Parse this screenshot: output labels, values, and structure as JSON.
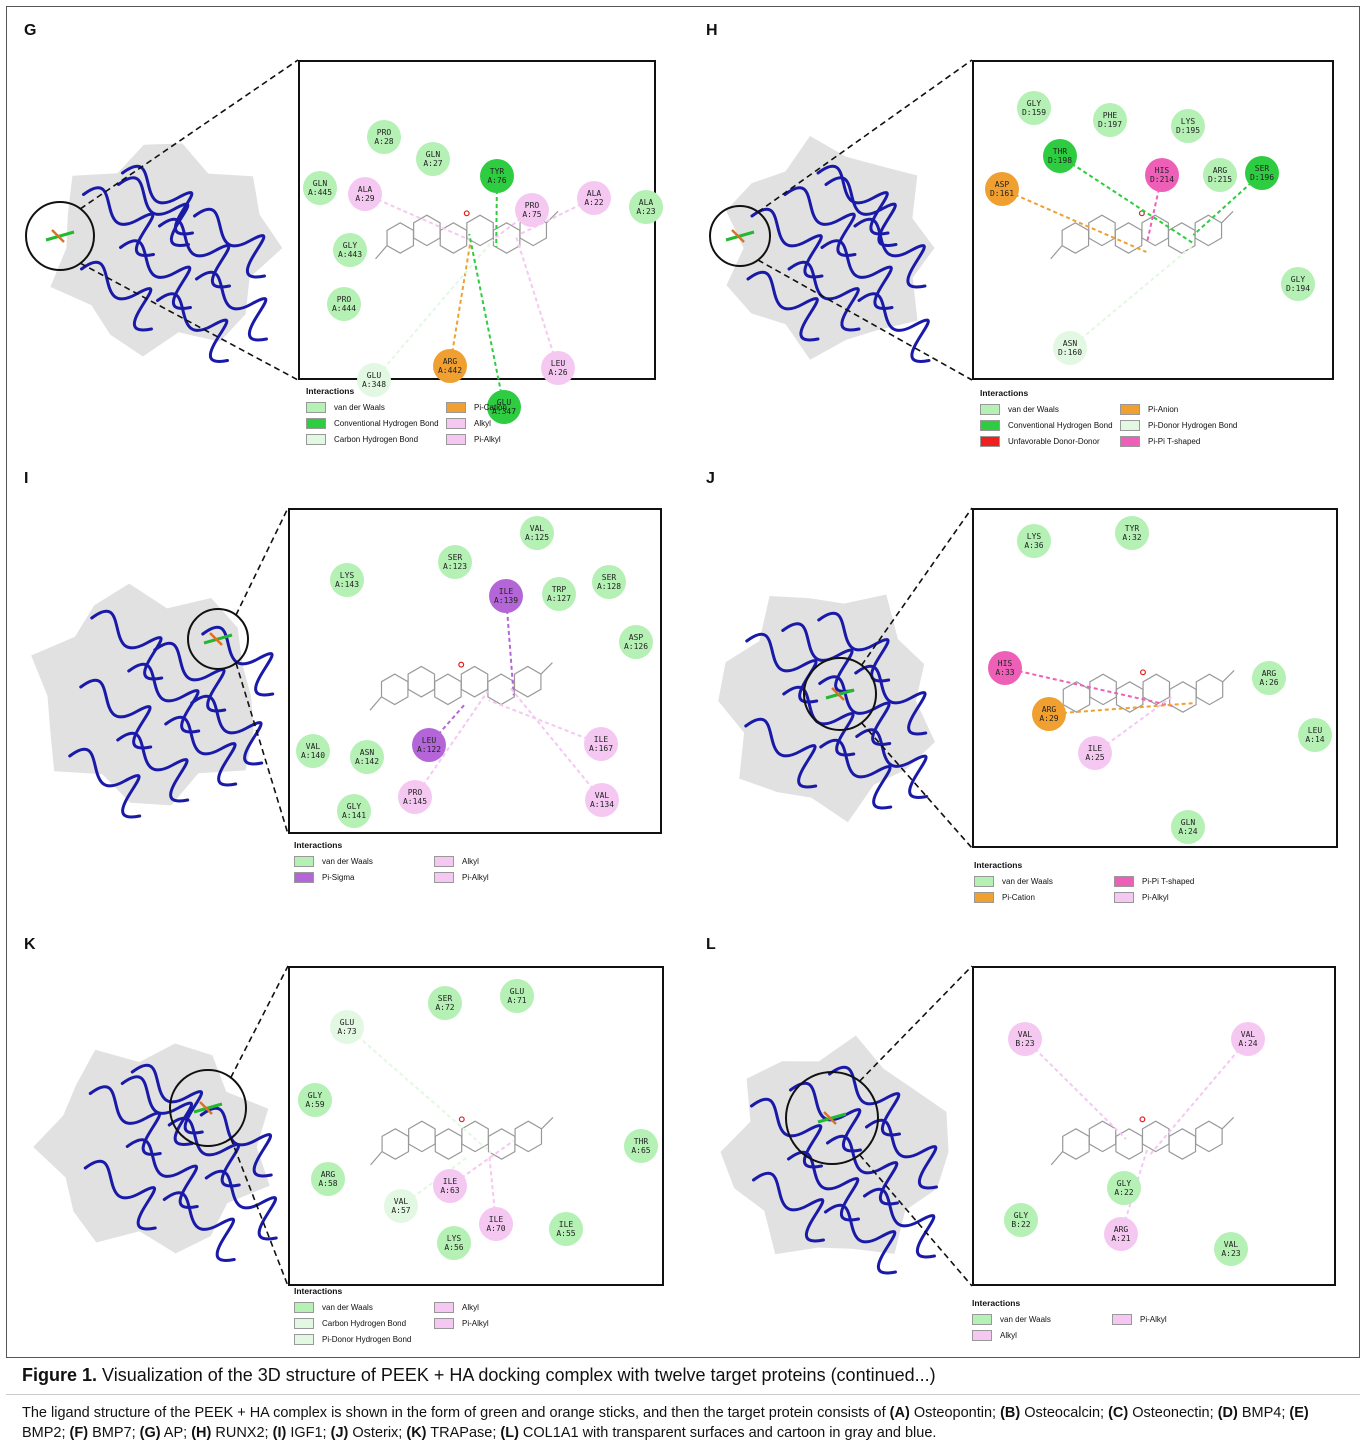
{
  "panels": [
    {
      "id": "G",
      "legend": [
        [
          "vdw",
          "van der Waals"
        ],
        [
          "pic",
          "Pi-Cation"
        ],
        [
          "hb",
          "Conventional Hydrogen Bond"
        ],
        [
          "alk",
          "Alkyl"
        ],
        [
          "chb",
          "Carbon Hydrogen Bond"
        ],
        [
          "alk",
          "Pi-Alkyl"
        ]
      ],
      "residues": [
        [
          "vdw",
          "PRO",
          "A:28"
        ],
        [
          "vdw",
          "GLN",
          "A:27"
        ],
        [
          "hb",
          "TYR",
          "A:76"
        ],
        [
          "vdw",
          "GLN",
          "A:445"
        ],
        [
          "alk",
          "ALA",
          "A:29"
        ],
        [
          "alk",
          "PRO",
          "A:75"
        ],
        [
          "alk",
          "ALA",
          "A:22"
        ],
        [
          "vdw",
          "ALA",
          "A:23"
        ],
        [
          "vdw",
          "GLY",
          "A:443"
        ],
        [
          "vdw",
          "PRO",
          "A:444"
        ],
        [
          "pic",
          "ARG",
          "A:442"
        ],
        [
          "chb",
          "GLU",
          "A:348"
        ],
        [
          "alk",
          "LEU",
          "A:26"
        ],
        [
          "hb",
          "GLU",
          "A:347"
        ]
      ]
    },
    {
      "id": "H",
      "legend": [
        [
          "vdw",
          "van der Waals"
        ],
        [
          "pic",
          "Pi-Anion"
        ],
        [
          "hb",
          "Conventional Hydrogen Bond"
        ],
        [
          "chb",
          "Pi-Donor Hydrogen Bond"
        ],
        [
          "unf",
          "Unfavorable Donor-Donor"
        ],
        [
          "pit",
          "Pi-Pi T-shaped"
        ]
      ],
      "residues": [
        [
          "vdw",
          "GLY",
          "D:159"
        ],
        [
          "vdw",
          "PHE",
          "D:197"
        ],
        [
          "vdw",
          "LYS",
          "D:195"
        ],
        [
          "hb",
          "THR",
          "D:198"
        ],
        [
          "pit",
          "HIS",
          "D:214"
        ],
        [
          "vdw",
          "ARG",
          "D:215"
        ],
        [
          "hb",
          "SER",
          "D:196"
        ],
        [
          "pic",
          "ASP",
          "D:161"
        ],
        [
          "vdw",
          "GLY",
          "D:194"
        ],
        [
          "chb",
          "ASN",
          "D:160"
        ]
      ]
    },
    {
      "id": "I",
      "legend": [
        [
          "vdw",
          "van der Waals"
        ],
        [
          "alk",
          "Alkyl"
        ],
        [
          "pis",
          "Pi-Sigma"
        ],
        [
          "alk",
          "Pi-Alkyl"
        ]
      ],
      "residues": [
        [
          "vdw",
          "VAL",
          "A:125"
        ],
        [
          "vdw",
          "SER",
          "A:123"
        ],
        [
          "vdw",
          "LYS",
          "A:143"
        ],
        [
          "pis",
          "ILE",
          "A:139"
        ],
        [
          "vdw",
          "TRP",
          "A:127"
        ],
        [
          "vdw",
          "SER",
          "A:128"
        ],
        [
          "vdw",
          "ASP",
          "A:126"
        ],
        [
          "pis",
          "LEU",
          "A:122"
        ],
        [
          "alk",
          "ILE",
          "A:167"
        ],
        [
          "vdw",
          "VAL",
          "A:140"
        ],
        [
          "vdw",
          "ASN",
          "A:142"
        ],
        [
          "alk",
          "PRO",
          "A:145"
        ],
        [
          "alk",
          "VAL",
          "A:134"
        ],
        [
          "vdw",
          "GLY",
          "A:141"
        ]
      ]
    },
    {
      "id": "J",
      "legend": [
        [
          "vdw",
          "van der Waals"
        ],
        [
          "pit",
          "Pi-Pi T-shaped"
        ],
        [
          "pic",
          "Pi-Cation"
        ],
        [
          "alk",
          "Pi-Alkyl"
        ]
      ],
      "residues": [
        [
          "vdw",
          "LYS",
          "A:36"
        ],
        [
          "vdw",
          "TYR",
          "A:32"
        ],
        [
          "pit",
          "HIS",
          "A:33"
        ],
        [
          "pic",
          "ARG",
          "A:29"
        ],
        [
          "vdw",
          "ARG",
          "A:26"
        ],
        [
          "alk",
          "ILE",
          "A:25"
        ],
        [
          "vdw",
          "LEU",
          "A:14"
        ],
        [
          "vdw",
          "GLN",
          "A:24"
        ]
      ]
    },
    {
      "id": "K",
      "legend": [
        [
          "vdw",
          "van der Waals"
        ],
        [
          "alk",
          "Alkyl"
        ],
        [
          "chb",
          "Carbon Hydrogen Bond"
        ],
        [
          "alk",
          "Pi-Alkyl"
        ],
        [
          "chb",
          "Pi-Donor Hydrogen Bond"
        ],
        [
          "",
          ""
        ]
      ],
      "residues": [
        [
          "vdw",
          "SER",
          "A:72"
        ],
        [
          "vdw",
          "GLU",
          "A:71"
        ],
        [
          "chb",
          "GLU",
          "A:73"
        ],
        [
          "vdw",
          "GLY",
          "A:59"
        ],
        [
          "vdw",
          "THR",
          "A:65"
        ],
        [
          "vdw",
          "ARG",
          "A:58"
        ],
        [
          "alk",
          "ILE",
          "A:63"
        ],
        [
          "chb",
          "VAL",
          "A:57"
        ],
        [
          "alk",
          "ILE",
          "A:70"
        ],
        [
          "vdw",
          "ILE",
          "A:55"
        ],
        [
          "vdw",
          "LYS",
          "A:56"
        ]
      ]
    },
    {
      "id": "L",
      "legend": [
        [
          "vdw",
          "van der Waals"
        ],
        [
          "alk",
          "Pi-Alkyl"
        ],
        [
          "alk",
          "Alkyl"
        ],
        [
          "",
          ""
        ]
      ],
      "residues": [
        [
          "alk",
          "VAL",
          "B:23"
        ],
        [
          "alk",
          "VAL",
          "A:24"
        ],
        [
          "vdw",
          "GLY",
          "A:22"
        ],
        [
          "vdw",
          "GLY",
          "B:22"
        ],
        [
          "alk",
          "ARG",
          "A:21"
        ],
        [
          "vdw",
          "VAL",
          "A:23"
        ]
      ]
    }
  ],
  "legend_title": "Interactions",
  "caption": {
    "label": "Figure 1.",
    "title": "Visualization of the 3D structure of PEEK + HA docking complex with twelve target proteins (continued...)",
    "body_segments": [
      [
        "t",
        "The ligand structure of the PEEK + HA complex is shown in the form of green and orange sticks, and then the target protein consists of "
      ],
      [
        "b",
        "(A)"
      ],
      [
        "t",
        " Osteopontin; "
      ],
      [
        "b",
        "(B)"
      ],
      [
        "t",
        " Osteocalcin; "
      ],
      [
        "b",
        "(C)"
      ],
      [
        "t",
        " Osteonectin; "
      ],
      [
        "b",
        "(D)"
      ],
      [
        "t",
        " BMP4; "
      ],
      [
        "b",
        "(E)"
      ],
      [
        "t",
        " BMP2; "
      ],
      [
        "b",
        "(F)"
      ],
      [
        "t",
        " BMP7; "
      ],
      [
        "b",
        "(G)"
      ],
      [
        "t",
        " AP; "
      ],
      [
        "b",
        "(H)"
      ],
      [
        "t",
        " RUNX2; "
      ],
      [
        "b",
        "(I)"
      ],
      [
        "t",
        " IGF1; "
      ],
      [
        "b",
        "(J)"
      ],
      [
        "t",
        " Osterix; "
      ],
      [
        "b",
        "(K)"
      ],
      [
        "t",
        " TRAPase; "
      ],
      [
        "b",
        "(L)"
      ],
      [
        "t",
        " COL1A1 with transparent surfaces and cartoon in gray and blue."
      ]
    ]
  },
  "colors": {
    "vdw": "#b5f0b5",
    "hb": "#2ecc40",
    "chb": "#e2f8e2",
    "pic": "#f0a030",
    "alk": "#f5c8f2",
    "pis": "#b466d8",
    "pit": "#ee60b8",
    "unf": "#ee2020",
    "cartoon": "#1a1aa8",
    "surface": "#c8c8c8"
  }
}
